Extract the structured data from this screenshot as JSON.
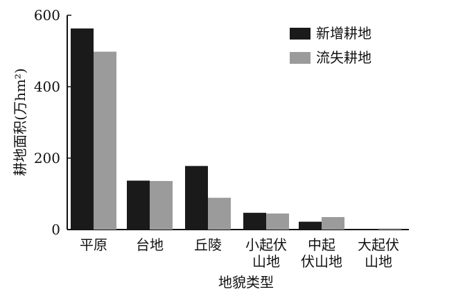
{
  "chart_data": {
    "type": "bar",
    "title": "",
    "xlabel": "地貌类型",
    "ylabel": "耕地面积(万hm²)",
    "ylim": [
      0,
      600
    ],
    "yticks": [
      0,
      200,
      400,
      600
    ],
    "grid": false,
    "legend_position": "top-right",
    "categories": [
      [
        "平原"
      ],
      [
        "台地"
      ],
      [
        "丘陵"
      ],
      [
        "小起伏",
        "山地"
      ],
      [
        "中起",
        "伏山地"
      ],
      [
        "大起伏",
        "山地"
      ]
    ],
    "series": [
      {
        "name": "新增耕地",
        "color": "#1a1a1a",
        "values": [
          563,
          137,
          178,
          47,
          22,
          2
        ]
      },
      {
        "name": "流失耕地",
        "color": "#9b9b9b",
        "values": [
          498,
          136,
          89,
          45,
          35,
          3
        ]
      }
    ]
  }
}
